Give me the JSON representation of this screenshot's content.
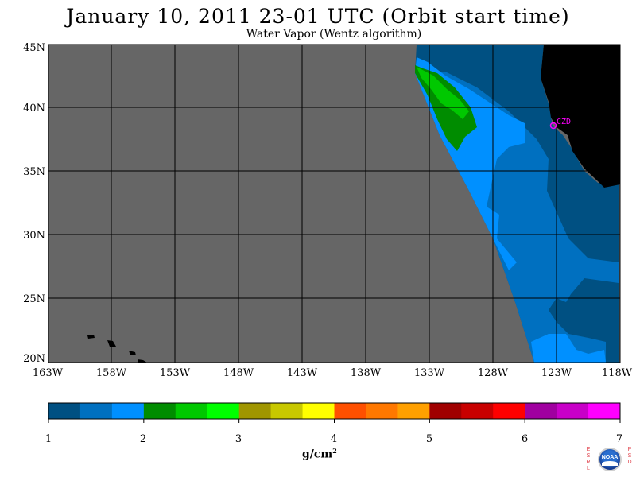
{
  "header": {
    "title": "January 10, 2011  23-01 UTC  (Orbit start time)",
    "subtitle": "Water Vapor (Wentz algorithm)"
  },
  "map": {
    "lat_labels": [
      "45N",
      "40N",
      "35N",
      "30N",
      "25N",
      "20N"
    ],
    "lon_labels": [
      "163W",
      "158W",
      "153W",
      "148W",
      "143W",
      "138W",
      "133W",
      "128W",
      "123W",
      "118W"
    ],
    "station_label": "CZD",
    "colors": {
      "no_data": "#666666",
      "land": "#000000",
      "grid": "#000000",
      "station": "#ff00ff"
    }
  },
  "colorbar": {
    "ticks": [
      "1",
      "2",
      "3",
      "4",
      "5",
      "6",
      "7"
    ],
    "unit": "g/cm",
    "unit_sup": "2",
    "colors": [
      "#005082",
      "#0070c0",
      "#0090ff",
      "#008c00",
      "#00c800",
      "#00ff00",
      "#a09600",
      "#c8c800",
      "#ffff00",
      "#ff5000",
      "#ff7800",
      "#ffa000",
      "#a00000",
      "#c80000",
      "#ff0000",
      "#a000a0",
      "#c800c8",
      "#ff00ff"
    ]
  },
  "logo": {
    "left_letters": "ESRL",
    "right_letters": "PSD",
    "noaa_text": "NOAA"
  }
}
